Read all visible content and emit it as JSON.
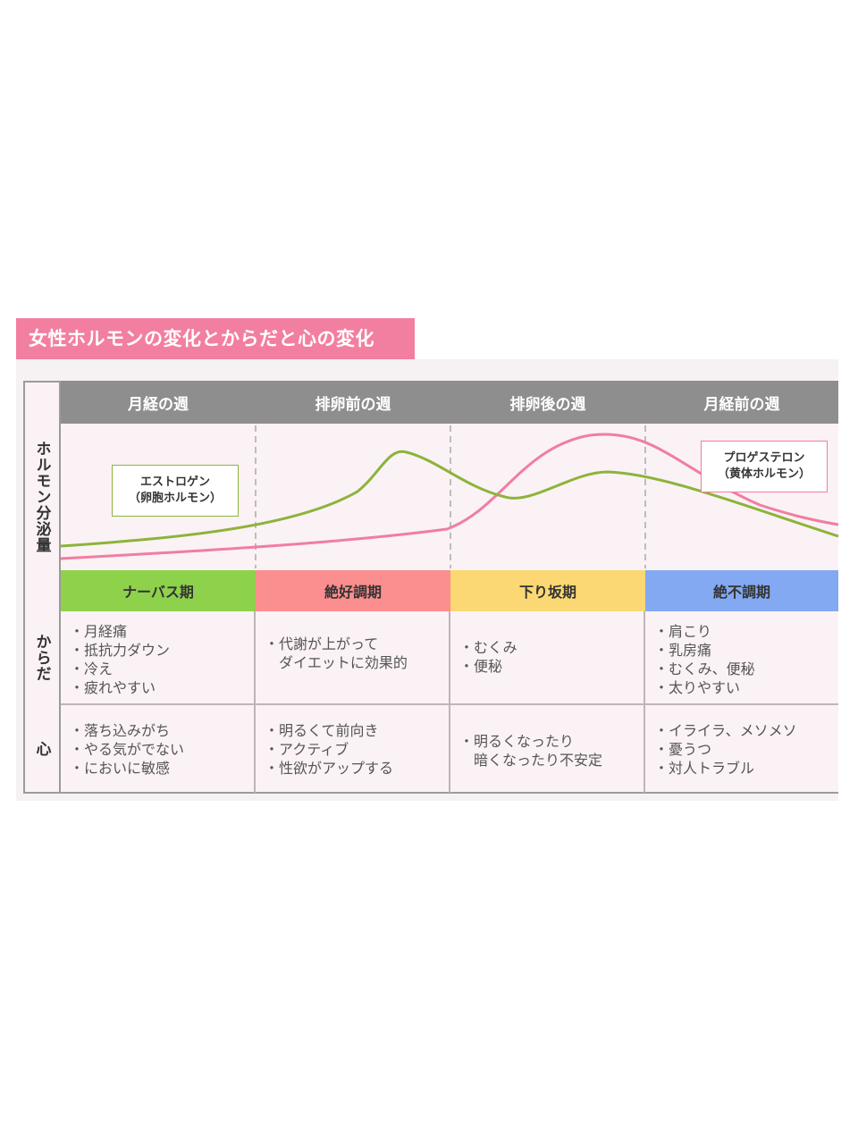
{
  "title": "女性ホルモンの変化とからだと心の変化",
  "side_labels": {
    "hormone": "ホルモン分泌量",
    "body": "からだ",
    "mind": "心"
  },
  "weeks": [
    "月経の週",
    "排卵前の週",
    "排卵後の週",
    "月経前の週"
  ],
  "hormones": {
    "estrogen": {
      "name": "エストロゲン",
      "sub": "（卵胞ホルモン）",
      "color": "#8db33a"
    },
    "progesterone": {
      "name": "プロゲステロン",
      "sub": "（黄体ホルモン）",
      "color": "#f07ea0"
    }
  },
  "phases": [
    {
      "label": "ナーバス期",
      "color": "#8ed14b"
    },
    {
      "label": "絶好調期",
      "color": "#fb8e8e"
    },
    {
      "label": "下り坂期",
      "color": "#fbd873"
    },
    {
      "label": "絶不調期",
      "color": "#82a9f2"
    }
  ],
  "body_rows": [
    [
      "・月経痛",
      "・抵抗力ダウン",
      "・冷え",
      "・疲れやすい"
    ],
    [
      "・代謝が上がって",
      "　ダイエットに効果的"
    ],
    [
      "・むくみ",
      "・便秘"
    ],
    [
      "・肩こり",
      "・乳房痛",
      "・むくみ、便秘",
      "・太りやすい"
    ]
  ],
  "mind_rows": [
    [
      "・落ち込みがち",
      "・やる気がでない",
      "・においに敏感"
    ],
    [
      "・明るくて前向き",
      "・アクティブ",
      "・性欲がアップする"
    ],
    [
      "・明るくなったり",
      "　暗くなったり不安定"
    ],
    [
      "・イライラ、メソメソ",
      "・憂うつ",
      "・対人トラブル"
    ]
  ]
}
